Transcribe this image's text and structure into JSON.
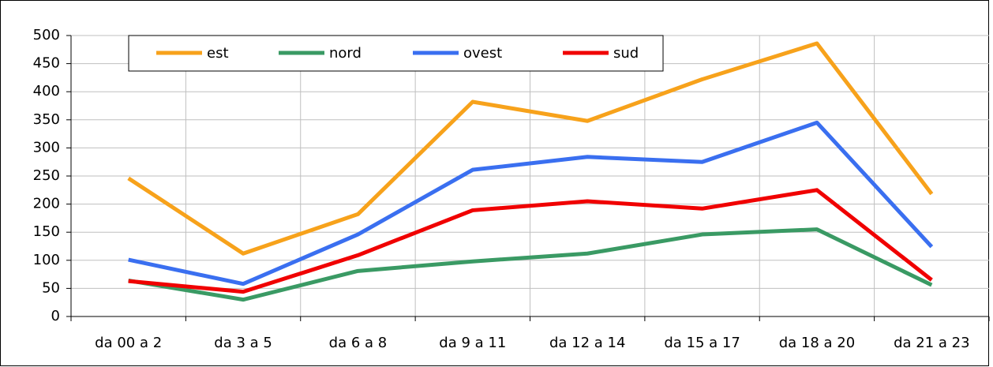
{
  "chart_data": {
    "type": "line",
    "categories": [
      "da 00 a 2",
      "da 3 a 5",
      "da 6 a 8",
      "da 9 a 11",
      "da 12 a 14",
      "da 15 a 17",
      "da 18 a 20",
      "da 21 a 23"
    ],
    "series": [
      {
        "name": "est",
        "color": "#f7a21b",
        "values": [
          246,
          112,
          182,
          382,
          348,
          422,
          486,
          218
        ]
      },
      {
        "name": "nord",
        "color": "#3a9a64",
        "values": [
          64,
          30,
          81,
          98,
          112,
          146,
          155,
          56
        ]
      },
      {
        "name": "ovest",
        "color": "#3a6ff0",
        "values": [
          101,
          58,
          146,
          261,
          284,
          275,
          345,
          124
        ]
      },
      {
        "name": "sud",
        "color": "#f00000",
        "values": [
          63,
          44,
          109,
          189,
          205,
          192,
          225,
          65
        ]
      }
    ],
    "ylim": [
      0,
      500
    ],
    "yticks": [
      0,
      50,
      100,
      150,
      200,
      250,
      300,
      350,
      400,
      450,
      500
    ],
    "grid": true,
    "legend": "top-left"
  }
}
